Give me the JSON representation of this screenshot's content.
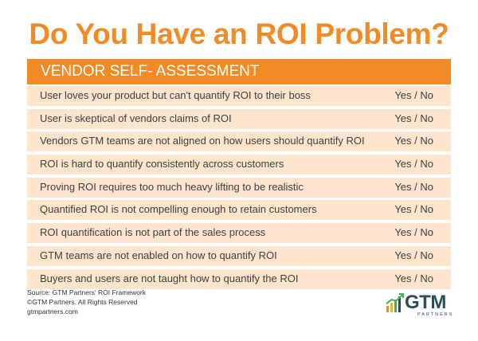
{
  "title": "Do You Have an ROI Problem?",
  "header": "VENDOR SELF- ASSESSMENT",
  "rows": [
    {
      "question": "User loves your product but can't quantify ROI to their boss",
      "answer": "Yes / No"
    },
    {
      "question": "User is skeptical of vendors claims of ROI",
      "answer": "Yes / No"
    },
    {
      "question": "Vendors GTM teams are not aligned on how users should quantify ROI",
      "answer": "Yes / No"
    },
    {
      "question": "ROI is hard to quantify consistently across customers",
      "answer": "Yes / No"
    },
    {
      "question": "Proving ROI requires too much heavy lifting to be realistic",
      "answer": "Yes / No"
    },
    {
      "question": "Quantified ROI is not compelling enough to retain customers",
      "answer": "Yes / No"
    },
    {
      "question": "ROI quantification is not part of the sales process",
      "answer": "Yes / No"
    },
    {
      "question": "GTM teams are not enabled on how to quantify ROI",
      "answer": "Yes / No"
    },
    {
      "question": "Buyers and users are not taught how to quantify the ROI",
      "answer": "Yes / No"
    }
  ],
  "footer": {
    "source": "Source: GTM Partners' ROI Framework",
    "copyright": "©GTM Partners, All Rights Reserved",
    "website": "gtmpartners.com"
  },
  "logo": {
    "name": "GTM",
    "sub": "PARTNERS",
    "icon": "rising-bar-chart-icon"
  },
  "colors": {
    "accent": "#f28a25",
    "row_bg": "#fde4cc",
    "logo": "#2d4d5a",
    "logo_green": "#4caf50"
  }
}
